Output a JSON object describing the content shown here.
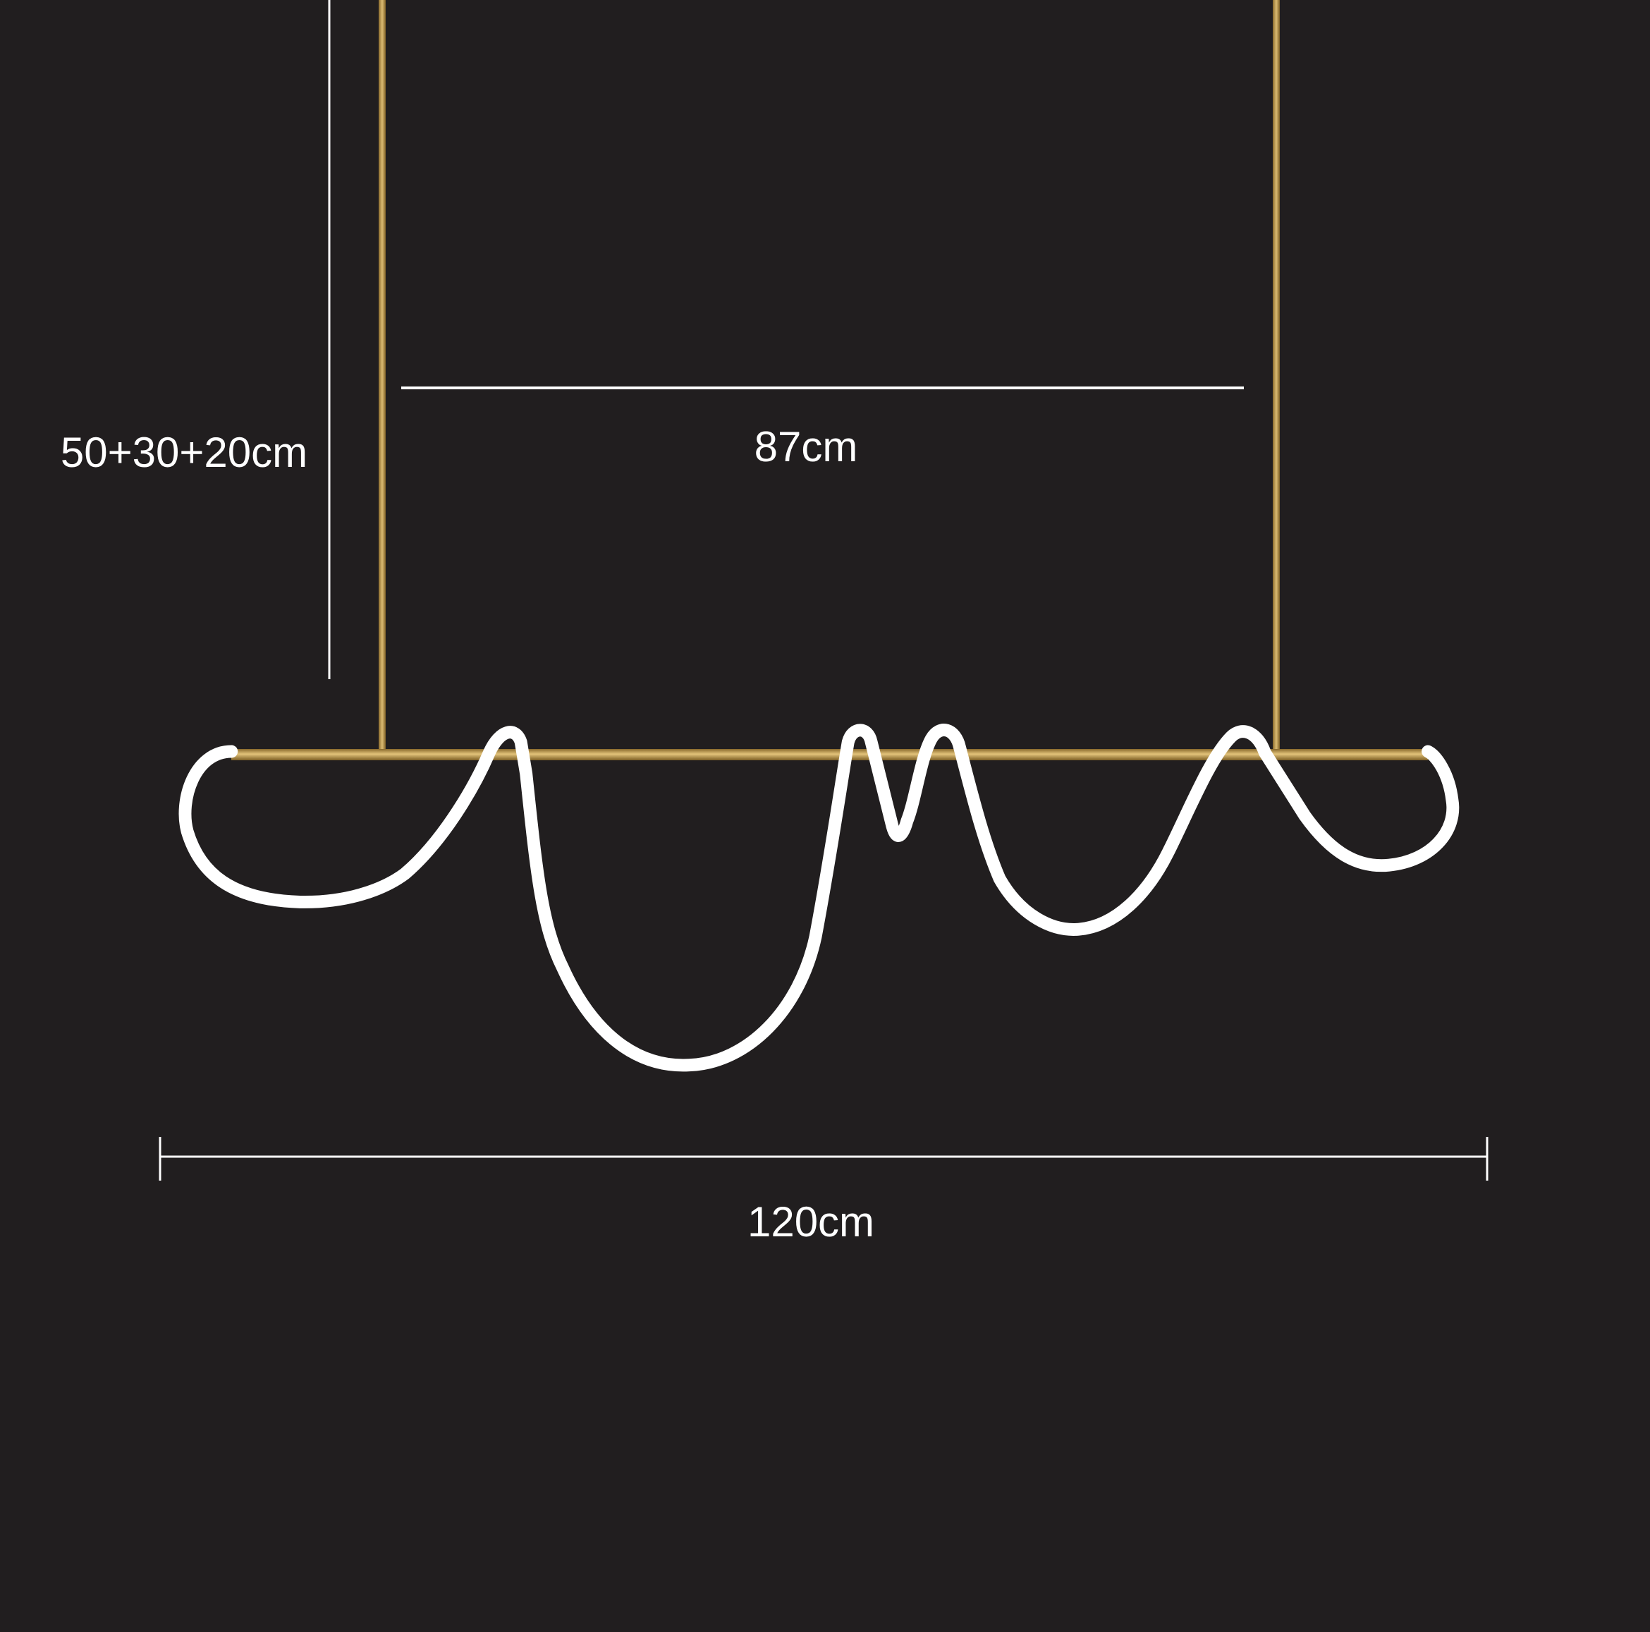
{
  "dimensions": {
    "height_label": "50+30+20cm",
    "rod_spacing_label": "87cm",
    "total_width_label": "120cm"
  },
  "colors": {
    "background": "#211e1f",
    "brass": "#c9a45a",
    "light_tube": "#ffffff",
    "dimension_line": "#ffffff"
  }
}
